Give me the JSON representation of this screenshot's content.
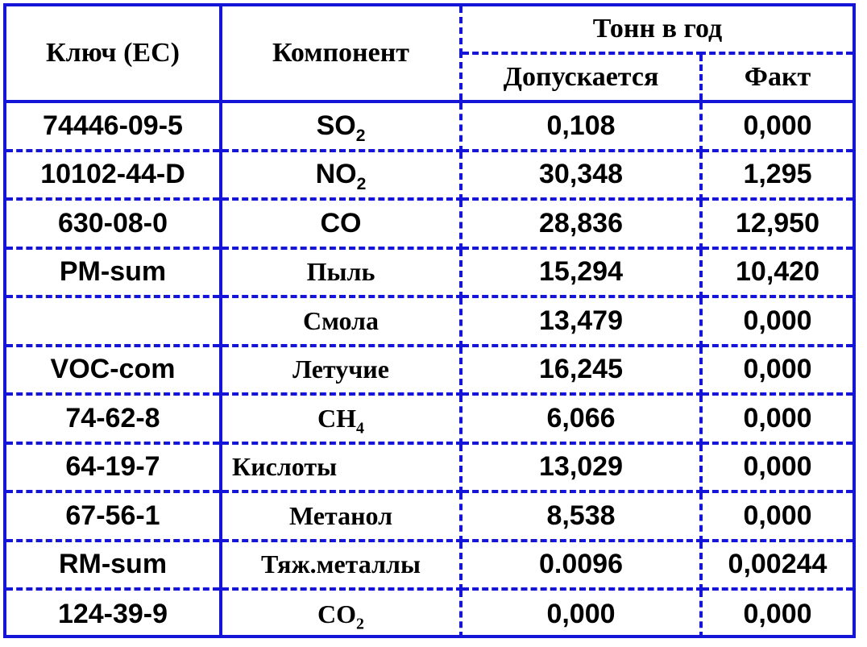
{
  "header": {
    "key": "Ключ (EC)",
    "component": "Компонент",
    "group": "Тонн в год",
    "allowed": "Допускается",
    "fact": "Факт"
  },
  "rows": [
    {
      "key": "74446-09-5",
      "comp": "SO",
      "sub": "2",
      "allowed": "0,108",
      "fact": "0,000"
    },
    {
      "key": "10102-44-D",
      "comp": "NO",
      "sub": "2",
      "allowed": "30,348",
      "fact": "1,295"
    },
    {
      "key": "630-08-0",
      "comp": "CO",
      "sub": "",
      "allowed": "28,836",
      "fact": "12,950"
    },
    {
      "key": "PM-sum",
      "comp": "Пыль",
      "sub": "",
      "allowed": "15,294",
      "fact": "10,420"
    },
    {
      "key": "",
      "comp": "Смола",
      "sub": "",
      "allowed": "13,479",
      "fact": "0,000"
    },
    {
      "key": "VOC-com",
      "comp": "Летучие",
      "sub": "",
      "allowed": "16,245",
      "fact": "0,000"
    },
    {
      "key": "74-62-8",
      "comp": "CH",
      "sub": "4",
      "allowed": "6,066",
      "fact": "0,000"
    },
    {
      "key": "64-19-7",
      "comp": "Кислоты",
      "sub": "",
      "allowed": "13,029",
      "fact": "0,000"
    },
    {
      "key": "67-56-1",
      "comp": "Метанол",
      "sub": "",
      "allowed": "8,538",
      "fact": "0,000"
    },
    {
      "key": "RM-sum",
      "comp": "Тяж.металлы",
      "sub": "",
      "allowed": "0.0096",
      "fact": "0,00244"
    },
    {
      "key": "124-39-9",
      "comp": "CO",
      "sub": "2",
      "allowed": "0,000",
      "fact": "0,000"
    }
  ]
}
